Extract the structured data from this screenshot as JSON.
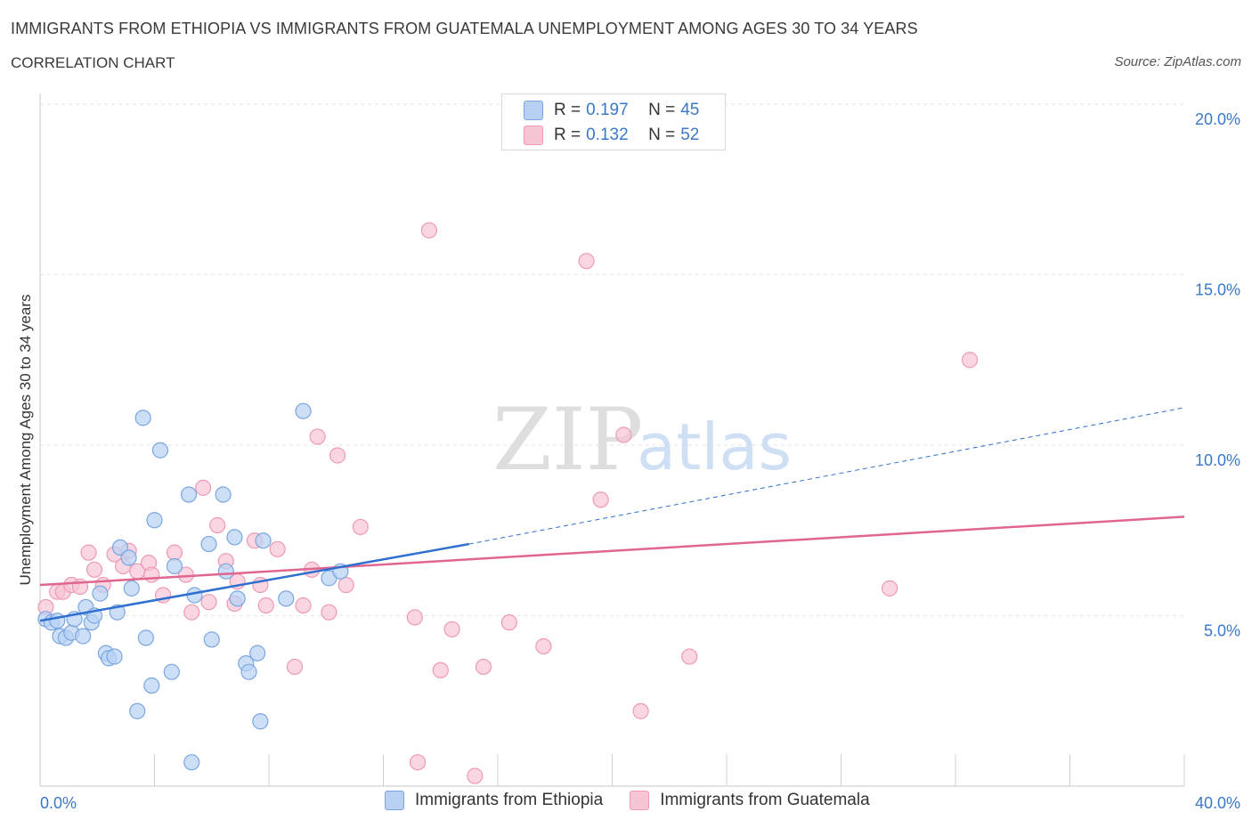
{
  "title": "IMMIGRANTS FROM ETHIOPIA VS IMMIGRANTS FROM GUATEMALA UNEMPLOYMENT AMONG AGES 30 TO 34 YEARS",
  "subtitle": "CORRELATION CHART",
  "source": "Source: ZipAtlas.com",
  "watermark": {
    "zip": "ZIP",
    "atlas": "atlas"
  },
  "colors": {
    "ethiopia_fill": "#b8d1f3",
    "ethiopia_stroke": "#7aa6e0",
    "ethiopia_line": "#2f6fcf",
    "guatemala_fill": "#f7c5d4",
    "guatemala_stroke": "#ee9ab4",
    "guatemala_line": "#e0668f",
    "axis_label": "#3a78c9",
    "grid": "#e3e3e3"
  },
  "legend": {
    "r_label": "R =",
    "n_label": "N =",
    "ethiopia": {
      "r": "0.197",
      "n": "45"
    },
    "guatemala": {
      "r": "0.132",
      "n": "52"
    }
  },
  "chart_data": {
    "type": "scatter",
    "xlabel": "",
    "ylabel": "Unemployment Among Ages 30 to 34 years",
    "xlim": [
      0,
      40
    ],
    "ylim": [
      0,
      20
    ],
    "x_tick_labels": [
      "0.0%",
      "40.0%"
    ],
    "y_ticks": [
      5,
      10,
      15,
      20
    ],
    "y_tick_labels": [
      "5.0%",
      "10.0%",
      "15.0%",
      "20.0%"
    ],
    "grid": true,
    "legend_position": "bottom-center",
    "series": [
      {
        "name": "Immigrants from Ethiopia",
        "r": 0.197,
        "n": 45,
        "trend": {
          "x0": 0,
          "y0": 4.85,
          "x1": 15,
          "y1": 7.1,
          "dashed_to_x": 40,
          "dashed_to_y": 11.1
        },
        "points": [
          [
            0.2,
            4.9
          ],
          [
            0.4,
            4.8
          ],
          [
            0.6,
            4.85
          ],
          [
            0.7,
            4.4
          ],
          [
            0.9,
            4.35
          ],
          [
            1.1,
            4.5
          ],
          [
            1.2,
            4.9
          ],
          [
            1.5,
            4.4
          ],
          [
            1.6,
            5.25
          ],
          [
            1.8,
            4.8
          ],
          [
            1.9,
            5.0
          ],
          [
            2.1,
            5.65
          ],
          [
            2.3,
            3.9
          ],
          [
            2.4,
            3.75
          ],
          [
            2.6,
            3.8
          ],
          [
            2.7,
            5.1
          ],
          [
            2.8,
            7.0
          ],
          [
            3.1,
            6.7
          ],
          [
            3.2,
            5.8
          ],
          [
            3.4,
            2.2
          ],
          [
            3.6,
            10.8
          ],
          [
            3.7,
            4.35
          ],
          [
            3.9,
            2.95
          ],
          [
            4.0,
            7.8
          ],
          [
            4.2,
            9.85
          ],
          [
            4.6,
            3.35
          ],
          [
            4.7,
            6.45
          ],
          [
            5.2,
            8.55
          ],
          [
            5.3,
            0.7
          ],
          [
            5.4,
            5.6
          ],
          [
            5.9,
            7.1
          ],
          [
            6.0,
            4.3
          ],
          [
            6.4,
            8.55
          ],
          [
            6.5,
            6.3
          ],
          [
            6.8,
            7.3
          ],
          [
            6.9,
            5.5
          ],
          [
            7.2,
            3.6
          ],
          [
            7.3,
            3.35
          ],
          [
            7.6,
            3.9
          ],
          [
            7.7,
            1.9
          ],
          [
            7.8,
            7.2
          ],
          [
            8.6,
            5.5
          ],
          [
            9.2,
            11.0
          ],
          [
            10.1,
            6.1
          ],
          [
            10.5,
            6.3
          ]
        ]
      },
      {
        "name": "Immigrants from Guatemala",
        "r": 0.132,
        "n": 52,
        "trend": {
          "x0": 0,
          "y0": 5.9,
          "x1": 40,
          "y1": 7.9
        },
        "points": [
          [
            0.2,
            5.25
          ],
          [
            0.6,
            5.7
          ],
          [
            0.8,
            5.7
          ],
          [
            1.1,
            5.9
          ],
          [
            1.4,
            5.85
          ],
          [
            1.7,
            6.85
          ],
          [
            1.9,
            6.35
          ],
          [
            2.2,
            5.9
          ],
          [
            2.6,
            6.8
          ],
          [
            2.9,
            6.45
          ],
          [
            3.1,
            6.9
          ],
          [
            3.4,
            6.3
          ],
          [
            3.8,
            6.55
          ],
          [
            3.9,
            6.2
          ],
          [
            4.3,
            5.6
          ],
          [
            4.7,
            6.85
          ],
          [
            5.1,
            6.2
          ],
          [
            5.3,
            5.1
          ],
          [
            5.7,
            8.75
          ],
          [
            5.9,
            5.4
          ],
          [
            6.2,
            7.65
          ],
          [
            6.5,
            6.6
          ],
          [
            6.8,
            5.35
          ],
          [
            6.9,
            6.0
          ],
          [
            7.5,
            7.2
          ],
          [
            7.7,
            5.9
          ],
          [
            7.9,
            5.3
          ],
          [
            8.3,
            6.95
          ],
          [
            8.9,
            3.5
          ],
          [
            9.2,
            5.3
          ],
          [
            9.5,
            6.35
          ],
          [
            9.7,
            10.25
          ],
          [
            10.1,
            5.1
          ],
          [
            10.4,
            9.7
          ],
          [
            10.7,
            5.9
          ],
          [
            11.2,
            7.6
          ],
          [
            13.1,
            4.95
          ],
          [
            13.2,
            0.7
          ],
          [
            13.6,
            16.3
          ],
          [
            14.0,
            3.4
          ],
          [
            14.4,
            4.6
          ],
          [
            15.2,
            0.3
          ],
          [
            15.5,
            3.5
          ],
          [
            16.4,
            4.8
          ],
          [
            17.6,
            4.1
          ],
          [
            19.1,
            15.4
          ],
          [
            19.6,
            8.4
          ],
          [
            20.4,
            10.3
          ],
          [
            21.0,
            2.2
          ],
          [
            22.7,
            3.8
          ],
          [
            29.7,
            5.8
          ],
          [
            32.5,
            12.5
          ]
        ]
      }
    ]
  }
}
